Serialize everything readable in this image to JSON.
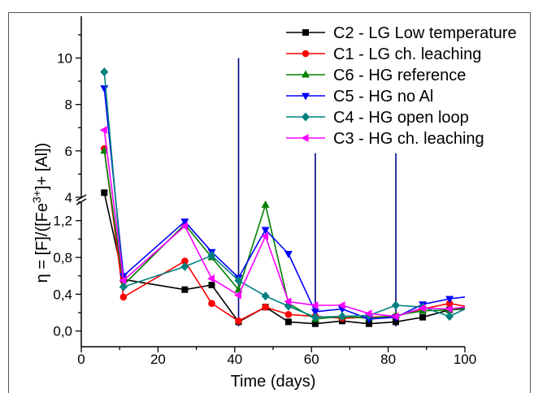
{
  "chart_data": {
    "type": "line",
    "xlabel": "Time (days)",
    "ylabel": {
      "pre": "η = [F]/([Fe",
      "sup": "3+",
      "post": "]+ [Al])"
    },
    "grid": false,
    "legend": "top-right",
    "x_axis": {
      "range": [
        0,
        100
      ],
      "minor_step": 10,
      "ticks": [
        {
          "value": 0,
          "label": "0"
        },
        {
          "value": 20,
          "label": "20"
        },
        {
          "value": 40,
          "label": "40"
        },
        {
          "value": 60,
          "label": "60"
        },
        {
          "value": 80,
          "label": "80"
        },
        {
          "value": 100,
          "label": "100"
        }
      ]
    },
    "y_axis": {
      "broken": true,
      "segments": [
        {
          "range": [
            -0.17,
            1.4
          ],
          "minor_step": 0.2,
          "ticks": [
            {
              "value": 0,
              "label": "0,0"
            },
            {
              "value": 0.4,
              "label": "0,4"
            },
            {
              "value": 0.8,
              "label": "0,8"
            },
            {
              "value": 1.2,
              "label": "1,2"
            }
          ]
        },
        {
          "range": [
            4,
            11.8
          ],
          "minor_step": 1,
          "ticks": [
            {
              "value": 4,
              "label": "4"
            },
            {
              "value": 6,
              "label": "6"
            },
            {
              "value": 8,
              "label": "8"
            },
            {
              "value": 10,
              "label": "10"
            }
          ]
        }
      ]
    },
    "x": [
      6,
      11,
      27,
      34,
      41,
      48,
      54,
      61,
      68,
      75,
      82,
      89,
      96,
      100
    ],
    "series": [
      {
        "name": "C2 - LG Low temperature",
        "color": "#000000",
        "marker": "square",
        "values": [
          4.2,
          0.56,
          0.45,
          0.5,
          0.1,
          0.26,
          0.1,
          0.08,
          0.11,
          0.08,
          0.1,
          0.15,
          0.23,
          0.24
        ]
      },
      {
        "name": "C1 - LG ch. leaching",
        "color": "#ff0000",
        "marker": "circle",
        "values": [
          6.1,
          0.37,
          0.76,
          0.3,
          0.11,
          0.26,
          0.18,
          0.16,
          0.14,
          0.15,
          0.16,
          0.24,
          0.3,
          0.27
        ]
      },
      {
        "name": "C6 - HG reference",
        "color": "#008000",
        "marker": "triangle-up",
        "values": [
          6.0,
          0.5,
          1.16,
          0.8,
          0.45,
          1.37,
          0.3,
          0.13,
          0.16,
          0.14,
          0.17,
          0.22,
          0.23,
          0.25
        ]
      },
      {
        "name": "C5 - HG no Al",
        "color": "#0000ff",
        "marker": "triangle-down",
        "values": [
          8.7,
          0.6,
          1.19,
          0.86,
          0.58,
          1.1,
          0.84,
          0.21,
          0.24,
          0.13,
          0.15,
          0.29,
          0.35,
          0.37
        ]
      },
      {
        "name": "C4 - HG open loop",
        "color": "#008080",
        "marker": "diamond",
        "values": [
          9.4,
          0.48,
          0.7,
          0.82,
          0.55,
          0.38,
          0.27,
          0.15,
          0.16,
          0.17,
          0.28,
          0.26,
          0.16,
          0.24
        ]
      },
      {
        "name": "C3 - HG ch. leaching",
        "color": "#ff00ff",
        "marker": "triangle-left",
        "values": [
          6.9,
          0.55,
          1.14,
          0.57,
          0.39,
          1.03,
          0.32,
          0.28,
          0.28,
          0.19,
          0.16,
          0.25,
          0.24,
          0.26
        ]
      }
    ],
    "reference_lines": {
      "color": "#000080",
      "lines": [
        {
          "x": 41,
          "y": [
            0.05,
            10
          ]
        },
        {
          "x": 61,
          "y": [
            0.05,
            5.9
          ]
        },
        {
          "x": 82,
          "y": [
            0.05,
            5.9
          ]
        }
      ]
    }
  }
}
